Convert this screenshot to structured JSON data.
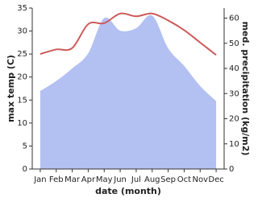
{
  "chart_data": {
    "type": "line-area",
    "categories": [
      "Jan",
      "Feb",
      "Mar",
      "Apr",
      "May",
      "Jun",
      "Jul",
      "Aug",
      "Sep",
      "Oct",
      "Nov",
      "Dec"
    ],
    "xlabel": "date (month)",
    "ylabel": "max temp (C)",
    "y2label": "med. precipitation (kg/m2)",
    "series": [
      {
        "name": "med. precipitation",
        "type": "area",
        "axis": "y2",
        "color": "#b3c0f2",
        "values": [
          31,
          35,
          40,
          46,
          60,
          55,
          56,
          61,
          48,
          41,
          33,
          27
        ]
      },
      {
        "name": "max temp",
        "type": "line",
        "color": "#cd5a5a",
        "values": [
          25,
          26,
          26.3,
          31.5,
          31.7,
          33.8,
          33.2,
          33.8,
          32.3,
          30.2,
          27.5,
          24.8
        ]
      }
    ],
    "ylim": [
      0,
      35
    ],
    "yticks": [
      0,
      5,
      10,
      15,
      20,
      25,
      30,
      35
    ],
    "y2lim": [
      0,
      64
    ],
    "y2ticks": [
      0,
      10,
      20,
      30,
      40,
      50,
      60
    ]
  }
}
